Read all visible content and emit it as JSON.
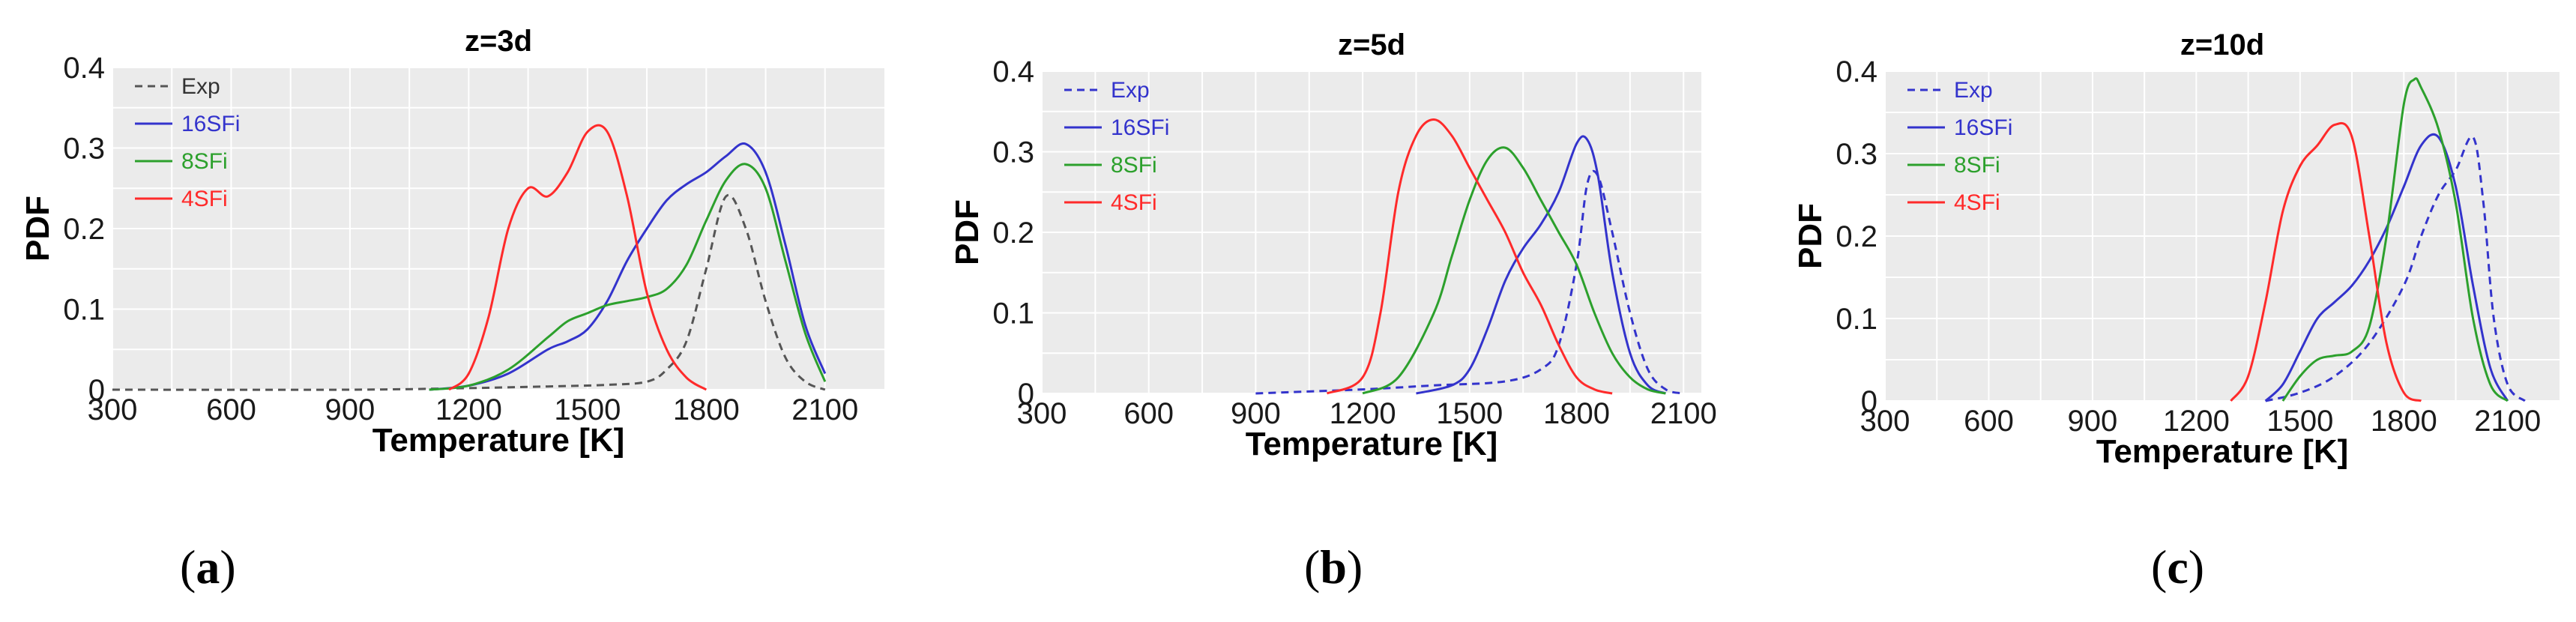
{
  "chart_data": [
    {
      "type": "line",
      "panel": "a",
      "caption": "a",
      "title": "z=3d",
      "xlabel": "Temperature [K]",
      "ylabel": "PDF",
      "xlim": [
        300,
        2250
      ],
      "ylim": [
        0,
        0.4
      ],
      "xticks": [
        "300",
        "600",
        "900",
        "1200",
        "1500",
        "1800",
        "2100"
      ],
      "yticks": [
        "0",
        "0.1",
        "0.2",
        "0.3",
        "0.4"
      ],
      "grid": true,
      "legend": "top-left",
      "series": [
        {
          "name": "Exp",
          "color": "#555555",
          "dash": "dashed",
          "x": [
            300,
            900,
            1200,
            1400,
            1550,
            1650,
            1700,
            1750,
            1800,
            1850,
            1900,
            1950,
            2000,
            2050,
            2100
          ],
          "y": [
            0,
            0,
            0.002,
            0.004,
            0.006,
            0.01,
            0.025,
            0.06,
            0.15,
            0.24,
            0.2,
            0.11,
            0.04,
            0.01,
            0
          ]
        },
        {
          "name": "16SFi",
          "color": "#3333cc",
          "dash": "solid",
          "x": [
            1100,
            1200,
            1300,
            1400,
            1450,
            1500,
            1550,
            1600,
            1650,
            1700,
            1750,
            1800,
            1850,
            1900,
            1950,
            2000,
            2050,
            2100
          ],
          "y": [
            0,
            0.005,
            0.02,
            0.05,
            0.06,
            0.075,
            0.11,
            0.16,
            0.2,
            0.235,
            0.255,
            0.27,
            0.29,
            0.305,
            0.27,
            0.18,
            0.08,
            0.02
          ]
        },
        {
          "name": "8SFi",
          "color": "#2ca02c",
          "dash": "solid",
          "x": [
            1100,
            1200,
            1300,
            1400,
            1450,
            1500,
            1550,
            1600,
            1650,
            1700,
            1750,
            1800,
            1850,
            1900,
            1950,
            2000,
            2050,
            2100
          ],
          "y": [
            0,
            0.005,
            0.025,
            0.065,
            0.085,
            0.095,
            0.105,
            0.11,
            0.115,
            0.125,
            0.155,
            0.21,
            0.26,
            0.28,
            0.25,
            0.16,
            0.07,
            0.01
          ]
        },
        {
          "name": "4SFi",
          "color": "#ff2a2a",
          "dash": "solid",
          "x": [
            1150,
            1200,
            1250,
            1300,
            1350,
            1400,
            1450,
            1500,
            1550,
            1600,
            1650,
            1700,
            1750,
            1800
          ],
          "y": [
            0,
            0.02,
            0.09,
            0.2,
            0.25,
            0.24,
            0.27,
            0.32,
            0.32,
            0.24,
            0.12,
            0.05,
            0.015,
            0
          ]
        }
      ]
    },
    {
      "type": "line",
      "panel": "b",
      "caption": "b",
      "title": "z=5d",
      "xlabel": "Temperature [K]",
      "ylabel": "PDF",
      "xlim": [
        300,
        2150
      ],
      "ylim": [
        0,
        0.4
      ],
      "xticks": [
        "300",
        "600",
        "900",
        "1200",
        "1500",
        "1800",
        "2100"
      ],
      "yticks": [
        "0",
        "0.1",
        "0.2",
        "0.3",
        "0.4"
      ],
      "grid": true,
      "legend": "top-left",
      "series": [
        {
          "name": "Exp",
          "color": "#3333cc",
          "dash": "dashed",
          "x": [
            900,
            1200,
            1400,
            1600,
            1700,
            1750,
            1800,
            1830,
            1860,
            1900,
            1950,
            2000,
            2050,
            2100
          ],
          "y": [
            0,
            0.005,
            0.01,
            0.015,
            0.03,
            0.06,
            0.16,
            0.26,
            0.27,
            0.2,
            0.1,
            0.03,
            0.005,
            0
          ]
        },
        {
          "name": "16SFi",
          "color": "#3333cc",
          "dash": "solid",
          "x": [
            1350,
            1450,
            1500,
            1550,
            1600,
            1650,
            1700,
            1750,
            1800,
            1830,
            1860,
            1900,
            1950,
            2000,
            2050
          ],
          "y": [
            0,
            0.01,
            0.03,
            0.08,
            0.14,
            0.18,
            0.21,
            0.25,
            0.31,
            0.315,
            0.27,
            0.15,
            0.05,
            0.01,
            0
          ]
        },
        {
          "name": "8SFi",
          "color": "#2ca02c",
          "dash": "solid",
          "x": [
            1200,
            1300,
            1400,
            1450,
            1500,
            1550,
            1600,
            1650,
            1700,
            1750,
            1800,
            1850,
            1900,
            1950,
            2000,
            2050
          ],
          "y": [
            0,
            0.02,
            0.1,
            0.17,
            0.24,
            0.29,
            0.305,
            0.28,
            0.24,
            0.2,
            0.16,
            0.1,
            0.05,
            0.02,
            0.005,
            0
          ]
        },
        {
          "name": "4SFi",
          "color": "#ff2a2a",
          "dash": "solid",
          "x": [
            1100,
            1200,
            1250,
            1300,
            1350,
            1400,
            1450,
            1500,
            1550,
            1600,
            1650,
            1700,
            1750,
            1800,
            1850,
            1900
          ],
          "y": [
            0,
            0.02,
            0.1,
            0.25,
            0.32,
            0.34,
            0.32,
            0.28,
            0.24,
            0.2,
            0.15,
            0.11,
            0.06,
            0.02,
            0.005,
            0
          ]
        }
      ]
    },
    {
      "type": "line",
      "panel": "c",
      "caption": "c",
      "title": "z=10d",
      "xlabel": "Temperature [K]",
      "ylabel": "PDF",
      "xlim": [
        300,
        2250
      ],
      "ylim": [
        0,
        0.4
      ],
      "xticks": [
        "300",
        "600",
        "900",
        "1200",
        "1500",
        "1800",
        "2100"
      ],
      "yticks": [
        "0",
        "0.1",
        "0.2",
        "0.3",
        "0.4"
      ],
      "grid": true,
      "legend": "top-left",
      "series": [
        {
          "name": "Exp",
          "color": "#3333cc",
          "dash": "dashed",
          "x": [
            1400,
            1500,
            1600,
            1700,
            1800,
            1850,
            1900,
            1950,
            2000,
            2030,
            2060,
            2100,
            2150
          ],
          "y": [
            0,
            0.01,
            0.03,
            0.07,
            0.14,
            0.2,
            0.25,
            0.28,
            0.32,
            0.24,
            0.1,
            0.02,
            0
          ]
        },
        {
          "name": "16SFi",
          "color": "#3333cc",
          "dash": "solid",
          "x": [
            1400,
            1450,
            1500,
            1550,
            1600,
            1650,
            1700,
            1750,
            1800,
            1850,
            1900,
            1950,
            2000,
            2050,
            2100
          ],
          "y": [
            0,
            0.02,
            0.06,
            0.1,
            0.12,
            0.14,
            0.17,
            0.21,
            0.26,
            0.31,
            0.32,
            0.26,
            0.14,
            0.04,
            0
          ]
        },
        {
          "name": "8SFi",
          "color": "#2ca02c",
          "dash": "solid",
          "x": [
            1450,
            1500,
            1550,
            1600,
            1650,
            1700,
            1750,
            1800,
            1830,
            1850,
            1900,
            1950,
            2000,
            2050,
            2100
          ],
          "y": [
            0,
            0.03,
            0.05,
            0.055,
            0.06,
            0.09,
            0.2,
            0.36,
            0.39,
            0.38,
            0.33,
            0.24,
            0.1,
            0.02,
            0
          ]
        },
        {
          "name": "4SFi",
          "color": "#ff2a2a",
          "dash": "solid",
          "x": [
            1300,
            1350,
            1400,
            1450,
            1500,
            1550,
            1600,
            1650,
            1700,
            1750,
            1800,
            1850
          ],
          "y": [
            0,
            0.03,
            0.12,
            0.23,
            0.285,
            0.31,
            0.335,
            0.32,
            0.2,
            0.07,
            0.01,
            0
          ]
        }
      ]
    }
  ]
}
